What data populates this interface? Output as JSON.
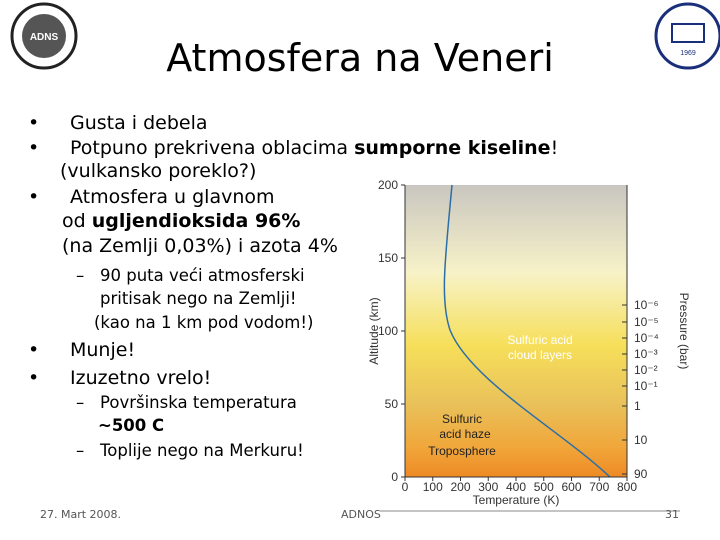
{
  "header": {
    "title": "Atmosfera na Veneri",
    "logo_left": "ADNS",
    "logo_right": "1969"
  },
  "body": {
    "lines": [
      {
        "level": 1,
        "marker": "•",
        "runs": [
          {
            "text": "Gusta i debela"
          }
        ]
      },
      {
        "level": 1,
        "marker": "•",
        "runs": [
          {
            "text": "Potpuno prekrivena oblacima "
          },
          {
            "text": "sumporne kiseline",
            "bold": true
          },
          {
            "text": "!"
          }
        ]
      },
      {
        "level": 1,
        "runs": [
          {
            "text": "(vulkansko poreklo?)"
          }
        ]
      },
      {
        "level": 1,
        "marker": "•",
        "runs": [
          {
            "text": "Atmosfera u glavnom"
          }
        ]
      },
      {
        "level": 1,
        "runs": [
          {
            "text": "od "
          },
          {
            "text": "ugljendioksida  96%",
            "bold": true
          }
        ]
      },
      {
        "level": 1,
        "runs": [
          {
            "text": "(na Zemlji 0,03%) i azota 4%"
          }
        ]
      },
      {
        "level": 2,
        "marker": "–",
        "runs": [
          {
            "text": "90 puta veći atmosferski"
          }
        ]
      },
      {
        "level": 2,
        "runs": [
          {
            "text": "pritisak nego na Zemlji!"
          }
        ]
      },
      {
        "level": 2,
        "runs": [
          {
            "text": "(kao na 1 km pod vodom!)"
          }
        ]
      },
      {
        "level": 1,
        "marker": "•",
        "runs": [
          {
            "text": "Munje!"
          }
        ]
      },
      {
        "level": 1,
        "marker": "•",
        "runs": [
          {
            "text": "Izuzetno vrelo!"
          }
        ]
      },
      {
        "level": 2,
        "marker": "–",
        "runs": [
          {
            "text": "Površinska temperatura"
          }
        ]
      },
      {
        "level": 2,
        "runs": [
          {
            "text": "~500 C",
            "bold": true
          }
        ]
      },
      {
        "level": 2,
        "marker": "–",
        "runs": [
          {
            "text": "Toplije nego na Merkuru!"
          }
        ]
      }
    ]
  },
  "figure": {
    "y_label": "Altitude (km)",
    "x_label": "Temperature (K)",
    "right_label": "Pressure (bar)",
    "yticks": [
      0,
      50,
      100,
      150,
      200
    ],
    "xticks": [
      0,
      100,
      200,
      300,
      400,
      500,
      600,
      700,
      800
    ],
    "pressure_ticks": [
      "10⁻⁶",
      "10⁻⁵",
      "10⁻⁴",
      "10⁻³",
      "10⁻²",
      "10⁻¹",
      "1",
      "10",
      "90"
    ],
    "annotations": [
      "Sulfuric acid",
      "cloud layers",
      "Sulfuric",
      "acid haze",
      "Troposphere"
    ]
  },
  "footer": {
    "date": "27. Mart 2008.",
    "org": "ADNOS",
    "page": "31"
  }
}
